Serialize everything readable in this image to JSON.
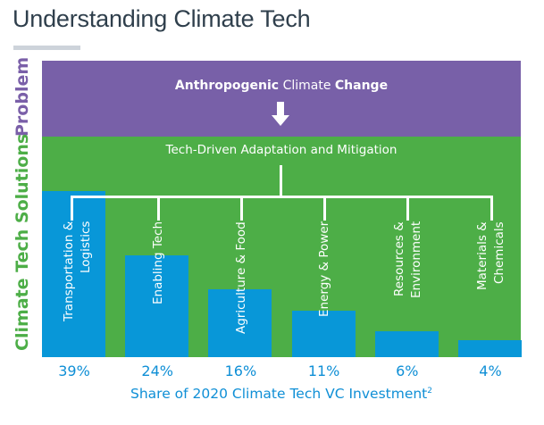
{
  "title": "Understanding Climate Tech",
  "side_labels": {
    "problem": "Problem",
    "solutions": "Climate Tech Solutions"
  },
  "problem": {
    "bold1": "Anthropogenic",
    "normal": " Climate ",
    "bold2": "Change"
  },
  "solutions_heading": "Tech-Driven Adaptation and Mitigation",
  "colors": {
    "problem": "#7860a8",
    "solutions": "#4dae47",
    "bars": "#0897d8",
    "text_blue": "#0f8fd6",
    "title": "#2f3f4c"
  },
  "icons": {
    "arrow": "arrow-down-icon"
  },
  "chart_data": {
    "type": "bar",
    "categories": [
      "Transportation & Logistics",
      "Enabling Tech",
      "Agriculture & Food",
      "Energy & Power",
      "Resources & Environment",
      "Materials & Chemicals"
    ],
    "category_lines": [
      [
        "Transportation &",
        "Logistics"
      ],
      [
        "Enabling Tech"
      ],
      [
        "Agriculture & Food"
      ],
      [
        "Energy & Power"
      ],
      [
        "Resources &",
        "Environment"
      ],
      [
        "Materials &",
        "Chemicals"
      ]
    ],
    "values": [
      39,
      24,
      16,
      11,
      6,
      4
    ],
    "data_labels": [
      "39%",
      "24%",
      "16%",
      "11%",
      "6%",
      "4%"
    ],
    "xlabel": "Share of 2020 Climate Tech VC Investment",
    "xlabel_superscript": "2",
    "ylabel": "",
    "grid": false
  }
}
